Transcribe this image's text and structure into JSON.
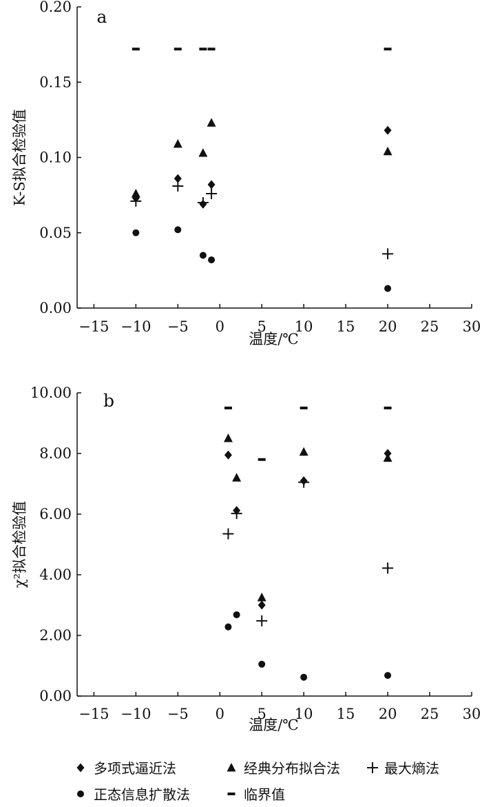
{
  "chart_data": [
    {
      "panel_label": "a",
      "type": "scatter",
      "xlabel": "温度/℃",
      "ylabel": "K-S拟合检验值",
      "xlim": [
        -17,
        30
      ],
      "ylim": [
        0,
        0.2
      ],
      "xticks": [
        -15,
        -10,
        -5,
        0,
        5,
        10,
        15,
        20,
        25,
        30
      ],
      "xtick_labels": [
        "−15",
        "−10",
        "−5",
        "0",
        "5",
        "10",
        "15",
        "20",
        "25",
        "30"
      ],
      "yticks": [
        0,
        0.05,
        0.1,
        0.15,
        0.2
      ],
      "ytick_labels": [
        "0.00",
        "0.05",
        "0.10",
        "0.15",
        "0.20"
      ],
      "series": [
        {
          "name": "多项式逼近法",
          "marker": "diamond",
          "points": [
            [
              -10,
              0.073
            ],
            [
              -5,
              0.086
            ],
            [
              -2,
              0.069
            ],
            [
              -1,
              0.082
            ],
            [
              20,
              0.118
            ]
          ]
        },
        {
          "name": "经典分布拟合法",
          "marker": "triangle",
          "points": [
            [
              -10,
              0.076
            ],
            [
              -5,
              0.109
            ],
            [
              -2,
              0.103
            ],
            [
              -1,
              0.123
            ],
            [
              20,
              0.104
            ]
          ]
        },
        {
          "name": "最大熵法",
          "marker": "plus",
          "points": [
            [
              -10,
              0.071
            ],
            [
              -5,
              0.081
            ],
            [
              -2,
              0.07
            ],
            [
              -1,
              0.076
            ],
            [
              20,
              0.036
            ]
          ]
        },
        {
          "name": "正态信息扩散法",
          "marker": "circle",
          "points": [
            [
              -10,
              0.05
            ],
            [
              -5,
              0.052
            ],
            [
              -2,
              0.035
            ],
            [
              -1,
              0.032
            ],
            [
              20,
              0.013
            ]
          ]
        },
        {
          "name": "临界值",
          "marker": "dash",
          "points": [
            [
              -10,
              0.172
            ],
            [
              -5,
              0.172
            ],
            [
              -2,
              0.172
            ],
            [
              -1,
              0.172
            ],
            [
              20,
              0.172
            ]
          ]
        }
      ]
    },
    {
      "panel_label": "b",
      "type": "scatter",
      "xlabel": "温度/℃",
      "ylabel": "χ²拟合检验值",
      "xlim": [
        -17,
        30
      ],
      "ylim": [
        0,
        10
      ],
      "xticks": [
        -15,
        -10,
        -5,
        0,
        5,
        10,
        15,
        20,
        25,
        30
      ],
      "xtick_labels": [
        "−15",
        "−10",
        "−5",
        "0",
        "5",
        "10",
        "15",
        "20",
        "25",
        "30"
      ],
      "yticks": [
        0,
        2,
        4,
        6,
        8,
        10
      ],
      "ytick_labels": [
        "0.00",
        "2.00",
        "4.00",
        "6.00",
        "8.00",
        "10.00"
      ],
      "series": [
        {
          "name": "多项式逼近法",
          "marker": "diamond",
          "points": [
            [
              1,
              7.95
            ],
            [
              2,
              6.12
            ],
            [
              5,
              3.0
            ],
            [
              10,
              7.1
            ],
            [
              20,
              8.0
            ]
          ]
        },
        {
          "name": "经典分布拟合法",
          "marker": "triangle",
          "points": [
            [
              1,
              8.5
            ],
            [
              2,
              7.2
            ],
            [
              5,
              3.25
            ],
            [
              10,
              8.05
            ],
            [
              20,
              7.85
            ]
          ]
        },
        {
          "name": "最大熵法",
          "marker": "plus",
          "points": [
            [
              1,
              5.35
            ],
            [
              2,
              6.02
            ],
            [
              5,
              2.48
            ],
            [
              10,
              7.05
            ],
            [
              20,
              4.22
            ]
          ]
        },
        {
          "name": "正态信息扩散法",
          "marker": "circle",
          "points": [
            [
              1,
              2.28
            ],
            [
              2,
              2.68
            ],
            [
              5,
              1.05
            ],
            [
              10,
              0.62
            ],
            [
              20,
              0.68
            ]
          ]
        },
        {
          "name": "临界值",
          "marker": "dash",
          "points": [
            [
              1,
              9.5
            ],
            [
              5,
              7.8
            ],
            [
              10,
              9.5
            ],
            [
              20,
              9.5
            ]
          ]
        }
      ]
    }
  ],
  "legend": [
    {
      "marker": "diamond",
      "label": "多项式逼近法"
    },
    {
      "marker": "triangle",
      "label": "经典分布拟合法"
    },
    {
      "marker": "plus",
      "label": "最大熵法"
    },
    {
      "marker": "circle",
      "label": "正态信息扩散法"
    },
    {
      "marker": "dash",
      "label": "临界值"
    }
  ]
}
